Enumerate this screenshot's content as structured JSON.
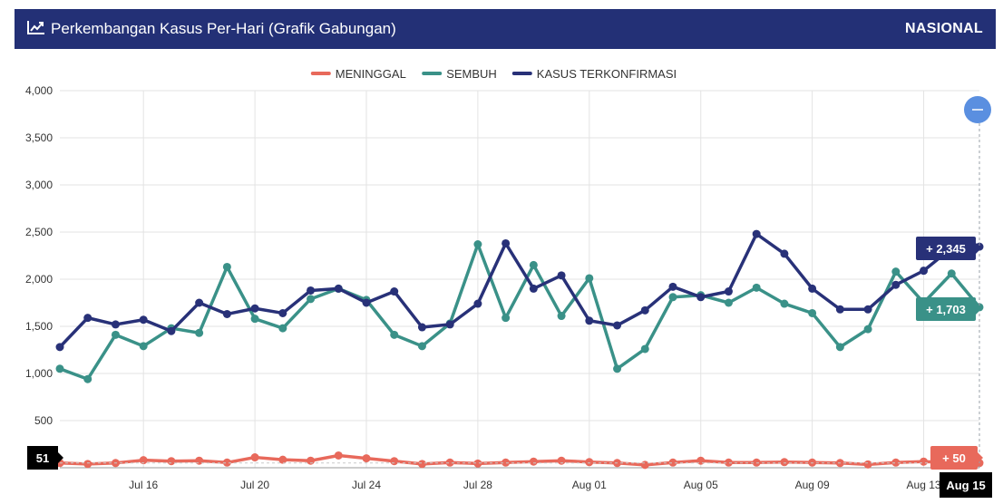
{
  "header": {
    "title": "Perkembangan Kasus Per-Hari (Grafik Gabungan)",
    "scope": "NASIONAL",
    "icon": "chart-line-icon"
  },
  "colors": {
    "header_bg": "#233076",
    "meninggal": "#e8695b",
    "sembuh": "#3a9188",
    "terkonfirmasi": "#283178",
    "crosshair_button": "#5a8fe0"
  },
  "chart_data": {
    "type": "line",
    "x": [
      "Jul 13",
      "Jul 14",
      "Jul 15",
      "Jul 16",
      "Jul 17",
      "Jul 18",
      "Jul 19",
      "Jul 20",
      "Jul 21",
      "Jul 22",
      "Jul 23",
      "Jul 24",
      "Jul 25",
      "Jul 26",
      "Jul 27",
      "Jul 28",
      "Jul 29",
      "Jul 30",
      "Jul 31",
      "Aug 01",
      "Aug 02",
      "Aug 03",
      "Aug 04",
      "Aug 05",
      "Aug 06",
      "Aug 07",
      "Aug 08",
      "Aug 09",
      "Aug 10",
      "Aug 11",
      "Aug 12",
      "Aug 13",
      "Aug 14",
      "Aug 15"
    ],
    "xticks": [
      "Jul 16",
      "Jul 20",
      "Jul 24",
      "Jul 28",
      "Aug 01",
      "Aug 05",
      "Aug 09",
      "Aug 13"
    ],
    "xticks_highlight": "Aug 15",
    "ylim": [
      0,
      4000
    ],
    "yticks": [
      "4,000",
      "3,500",
      "3,000",
      "2,500",
      "2,000",
      "1,500",
      "1,000",
      "500"
    ],
    "ytick_values": [
      4000,
      3500,
      3000,
      2500,
      2000,
      1500,
      1000,
      500
    ],
    "grid": true,
    "legend_position": "top-center",
    "series": [
      {
        "name": "MENINGGAL",
        "color_key": "meninggal",
        "values": [
          50,
          40,
          50,
          80,
          70,
          75,
          55,
          110,
          85,
          75,
          130,
          100,
          70,
          40,
          55,
          45,
          55,
          65,
          75,
          60,
          50,
          30,
          55,
          75,
          55,
          55,
          60,
          55,
          50,
          35,
          55,
          65,
          55,
          50
        ]
      },
      {
        "name": "SEMBUH",
        "color_key": "sembuh",
        "values": [
          1050,
          940,
          1410,
          1290,
          1480,
          1430,
          2130,
          1580,
          1480,
          1790,
          1900,
          1780,
          1410,
          1290,
          1530,
          2370,
          1590,
          2150,
          1610,
          2010,
          1050,
          1260,
          1810,
          1830,
          1750,
          1910,
          1740,
          1640,
          1280,
          1470,
          2080,
          1750,
          2060,
          1703
        ]
      },
      {
        "name": "KASUS TERKONFIRMASI",
        "color_key": "terkonfirmasi",
        "values": [
          1280,
          1590,
          1520,
          1570,
          1450,
          1750,
          1630,
          1690,
          1640,
          1880,
          1900,
          1750,
          1870,
          1490,
          1520,
          1740,
          2380,
          1900,
          2040,
          1560,
          1510,
          1670,
          1920,
          1810,
          1870,
          2480,
          2270,
          1900,
          1680,
          1680,
          1940,
          2090,
          2330,
          2345
        ]
      }
    ],
    "tooltips": {
      "meninggal": "+ 50",
      "sembuh": "+ 1,703",
      "terkonfirmasi": "+ 2,345",
      "y_readout": "51"
    }
  }
}
